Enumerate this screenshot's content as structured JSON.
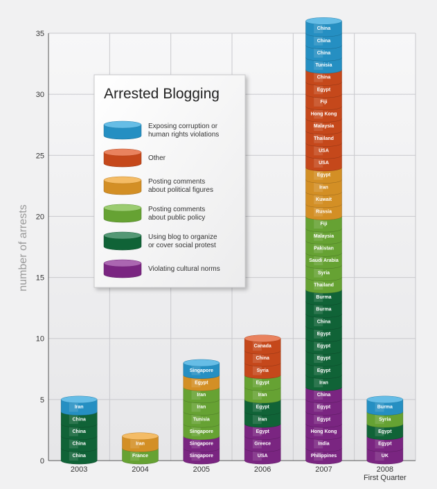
{
  "chart_data": {
    "type": "bar",
    "title": "",
    "ylabel": "number of arrests",
    "xlabel": "",
    "ylim": [
      0,
      35
    ],
    "yticks": [
      0,
      5,
      10,
      15,
      20,
      25,
      30,
      35
    ],
    "grid": true,
    "categories": [
      "2003",
      "2004",
      "2005",
      "2006",
      "2007",
      "2008"
    ],
    "category_sublabels": [
      "",
      "",
      "",
      "",
      "",
      "First Quarter"
    ],
    "colors": {
      "corruption": "#2aa3dc",
      "other": "#e0521f",
      "political_figures": "#f0a22a",
      "public_policy": "#74b83a",
      "social_protest": "#12703f",
      "cultural_norms": "#8b2a93"
    },
    "legend": {
      "title": "Arrested Blogging",
      "entries": [
        {
          "key": "corruption",
          "lines": [
            "Exposing corruption or",
            "human rights violations"
          ]
        },
        {
          "key": "other",
          "lines": [
            "Other"
          ]
        },
        {
          "key": "political_figures",
          "lines": [
            "Posting comments",
            "about political figures"
          ]
        },
        {
          "key": "public_policy",
          "lines": [
            "Posting comments",
            "about public policy"
          ]
        },
        {
          "key": "social_protest",
          "lines": [
            "Using blog to organize",
            "or cover social protest"
          ]
        },
        {
          "key": "cultural_norms",
          "lines": [
            "Violating cultural norms"
          ]
        }
      ]
    },
    "stacks": [
      {
        "year": "2003",
        "disks": [
          {
            "label": "China",
            "category": "social_protest"
          },
          {
            "label": "China",
            "category": "social_protest"
          },
          {
            "label": "China",
            "category": "social_protest"
          },
          {
            "label": "China",
            "category": "social_protest"
          },
          {
            "label": "Iran",
            "category": "corruption"
          }
        ]
      },
      {
        "year": "2004",
        "disks": [
          {
            "label": "France",
            "category": "public_policy"
          },
          {
            "label": "Iran",
            "category": "political_figures"
          }
        ]
      },
      {
        "year": "2005",
        "disks": [
          {
            "label": "Singapore",
            "category": "cultural_norms"
          },
          {
            "label": "Singapore",
            "category": "cultural_norms"
          },
          {
            "label": "Singapore",
            "category": "public_policy"
          },
          {
            "label": "Tunisia",
            "category": "public_policy"
          },
          {
            "label": "Iran",
            "category": "public_policy"
          },
          {
            "label": "Iran",
            "category": "public_policy"
          },
          {
            "label": "Egypt",
            "category": "political_figures"
          },
          {
            "label": "Singapore",
            "category": "corruption"
          }
        ]
      },
      {
        "year": "2006",
        "disks": [
          {
            "label": "USA",
            "category": "cultural_norms"
          },
          {
            "label": "Greece",
            "category": "cultural_norms"
          },
          {
            "label": "Egypt",
            "category": "cultural_norms"
          },
          {
            "label": "Iran",
            "category": "social_protest"
          },
          {
            "label": "Egypt",
            "category": "social_protest"
          },
          {
            "label": "Iran",
            "category": "public_policy"
          },
          {
            "label": "Egypt",
            "category": "public_policy"
          },
          {
            "label": "Syria",
            "category": "other"
          },
          {
            "label": "China",
            "category": "other"
          },
          {
            "label": "Canada",
            "category": "other"
          }
        ]
      },
      {
        "year": "2007",
        "disks": [
          {
            "label": "Philippines",
            "category": "cultural_norms"
          },
          {
            "label": "India",
            "category": "cultural_norms"
          },
          {
            "label": "Hong Kong",
            "category": "cultural_norms"
          },
          {
            "label": "Egypt",
            "category": "cultural_norms"
          },
          {
            "label": "Egypt",
            "category": "cultural_norms"
          },
          {
            "label": "China",
            "category": "cultural_norms"
          },
          {
            "label": "Iran",
            "category": "social_protest"
          },
          {
            "label": "Egypt",
            "category": "social_protest"
          },
          {
            "label": "Egypt",
            "category": "social_protest"
          },
          {
            "label": "Egypt",
            "category": "social_protest"
          },
          {
            "label": "Egypt",
            "category": "social_protest"
          },
          {
            "label": "China",
            "category": "social_protest"
          },
          {
            "label": "Burma",
            "category": "social_protest"
          },
          {
            "label": "Burma",
            "category": "social_protest"
          },
          {
            "label": "Thailand",
            "category": "public_policy"
          },
          {
            "label": "Syria",
            "category": "public_policy"
          },
          {
            "label": "Saudi Arabia",
            "category": "public_policy"
          },
          {
            "label": "Pakistan",
            "category": "public_policy"
          },
          {
            "label": "Malaysia",
            "category": "public_policy"
          },
          {
            "label": "Fiji",
            "category": "public_policy"
          },
          {
            "label": "Russia",
            "category": "political_figures"
          },
          {
            "label": "Kuwait",
            "category": "political_figures"
          },
          {
            "label": "Iran",
            "category": "political_figures"
          },
          {
            "label": "Egypt",
            "category": "political_figures"
          },
          {
            "label": "USA",
            "category": "other"
          },
          {
            "label": "USA",
            "category": "other"
          },
          {
            "label": "Thailand",
            "category": "other"
          },
          {
            "label": "Malaysia",
            "category": "other"
          },
          {
            "label": "Hong Kong",
            "category": "other"
          },
          {
            "label": "Fiji",
            "category": "other"
          },
          {
            "label": "Egypt",
            "category": "other"
          },
          {
            "label": "China",
            "category": "other"
          },
          {
            "label": "Tunisia",
            "category": "corruption"
          },
          {
            "label": "China",
            "category": "corruption"
          },
          {
            "label": "China",
            "category": "corruption"
          },
          {
            "label": "China",
            "category": "corruption"
          }
        ]
      },
      {
        "year": "2008",
        "disks": [
          {
            "label": "UK",
            "category": "cultural_norms"
          },
          {
            "label": "Egypt",
            "category": "cultural_norms"
          },
          {
            "label": "Egypt",
            "category": "social_protest"
          },
          {
            "label": "Syria",
            "category": "public_policy"
          },
          {
            "label": "Burma",
            "category": "corruption"
          }
        ]
      }
    ]
  }
}
